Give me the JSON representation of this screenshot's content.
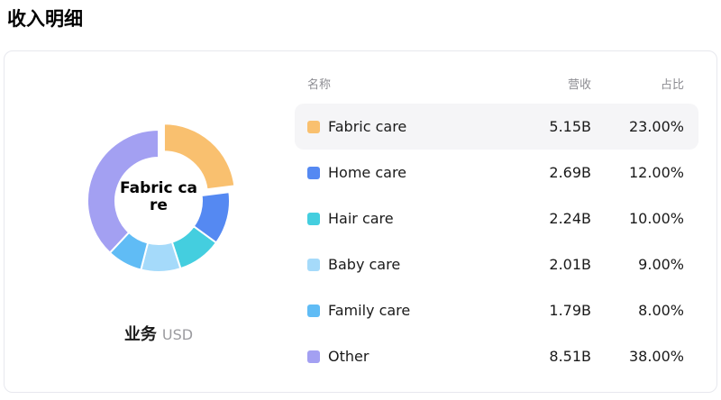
{
  "page": {
    "title": "收入明细"
  },
  "donut": {
    "center_label": "Fabric care",
    "footer_label": "业务",
    "footer_unit": "USD"
  },
  "table": {
    "headers": {
      "name": "名称",
      "revenue": "营收",
      "share": "占比"
    },
    "rows": [
      {
        "name": "Fabric care",
        "revenue": "5.15B",
        "share": "23.00%",
        "color": "#f9c06f",
        "highlighted": true
      },
      {
        "name": "Home care",
        "revenue": "2.69B",
        "share": "12.00%",
        "color": "#5589f2",
        "highlighted": false
      },
      {
        "name": "Hair care",
        "revenue": "2.24B",
        "share": "10.00%",
        "color": "#44cedf",
        "highlighted": false
      },
      {
        "name": "Baby care",
        "revenue": "2.01B",
        "share": "9.00%",
        "color": "#a5dafa",
        "highlighted": false
      },
      {
        "name": "Family care",
        "revenue": "1.79B",
        "share": "8.00%",
        "color": "#60bcf5",
        "highlighted": false
      },
      {
        "name": "Other",
        "revenue": "8.51B",
        "share": "38.00%",
        "color": "#a3a0f2",
        "highlighted": false
      }
    ]
  },
  "chart_data": {
    "type": "pie",
    "donut": true,
    "title": "收入明细",
    "categories": [
      "Fabric care",
      "Home care",
      "Hair care",
      "Baby care",
      "Family care",
      "Other"
    ],
    "values": [
      23,
      12,
      10,
      9,
      8,
      38
    ],
    "revenues_b_usd": [
      5.15,
      2.69,
      2.24,
      2.01,
      1.79,
      8.51
    ],
    "unit": "USD",
    "colors": [
      "#f9c06f",
      "#5589f2",
      "#44cedf",
      "#a5dafa",
      "#60bcf5",
      "#a3a0f2"
    ],
    "selected_slice": "Fabric care",
    "exploded_index": 0,
    "legend_position": "right-table"
  }
}
